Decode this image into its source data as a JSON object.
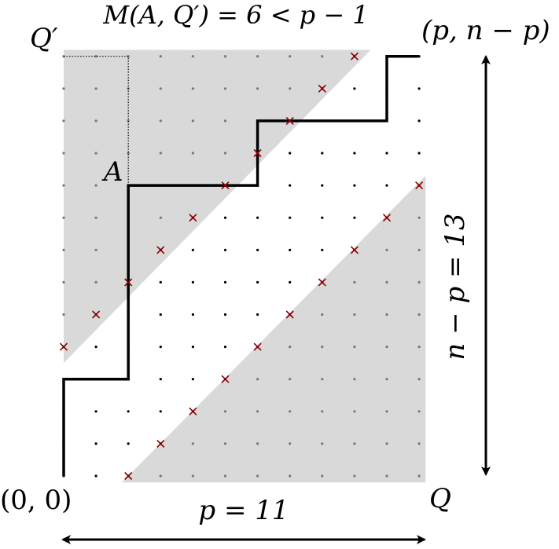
{
  "title": "M(A, Q′) = 6 < p − 1",
  "labels": {
    "q_prime": "Q′",
    "top_right": "(p, n − p)",
    "point_a": "A",
    "origin": "(0, 0)",
    "q": "Q",
    "width": "p = 11",
    "height": "n − p = 13"
  },
  "colors": {
    "shade": "#d9d9d9",
    "path": "#000000",
    "cross": "#8b0000",
    "dot_dark": "#000000",
    "dot_grey": "#777777"
  },
  "grid": {
    "p": 11,
    "rows": 13
  },
  "path_vertices": [
    [
      0,
      0
    ],
    [
      0,
      3
    ],
    [
      2,
      3
    ],
    [
      2,
      9
    ],
    [
      6,
      9
    ],
    [
      6,
      11
    ],
    [
      10,
      11
    ],
    [
      10,
      13
    ],
    [
      11,
      13
    ]
  ],
  "crosses_upper": [
    [
      0,
      4
    ],
    [
      1,
      5
    ],
    [
      2,
      6
    ],
    [
      3,
      7
    ],
    [
      4,
      8
    ],
    [
      5,
      9
    ],
    [
      6,
      10
    ],
    [
      7,
      11
    ],
    [
      8,
      12
    ],
    [
      9,
      13
    ]
  ],
  "crosses_lower": [
    [
      2,
      0
    ],
    [
      3,
      1
    ],
    [
      4,
      2
    ],
    [
      5,
      3
    ],
    [
      6,
      4
    ],
    [
      7,
      5
    ],
    [
      8,
      6
    ],
    [
      9,
      7
    ],
    [
      10,
      8
    ],
    [
      11,
      9
    ]
  ],
  "point_a": [
    2,
    9
  ],
  "q_prime": [
    0,
    13
  ]
}
